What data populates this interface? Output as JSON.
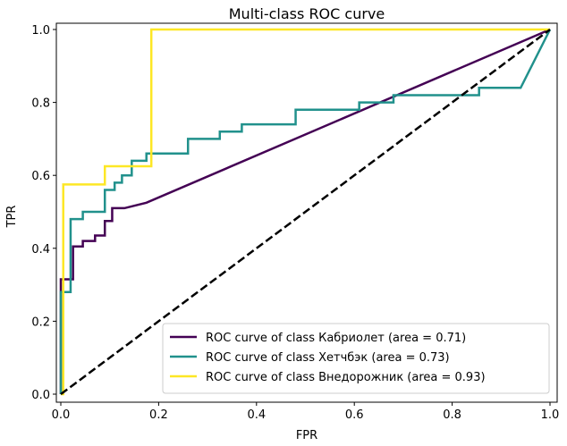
{
  "chart_data": {
    "type": "line",
    "title": "Multi-class ROC curve",
    "xlabel": "FPR",
    "ylabel": "TPR",
    "xlim": [
      0.0,
      1.0
    ],
    "ylim": [
      0.0,
      1.0
    ],
    "xticks": [
      "0.0",
      "0.2",
      "0.4",
      "0.6",
      "0.8",
      "1.0"
    ],
    "yticks": [
      "0.0",
      "0.2",
      "0.4",
      "0.6",
      "0.8",
      "1.0"
    ],
    "grid": false,
    "legend_position": "lower-right",
    "diagonal": {
      "x": [
        0,
        1
      ],
      "y": [
        0,
        1
      ],
      "style": "dashed",
      "color": "#000000"
    },
    "series": [
      {
        "name": "ROC curve of class Кабриолет (area = 0.71)",
        "color": "#440154",
        "x": [
          0.0,
          0.0,
          0.025,
          0.025,
          0.045,
          0.045,
          0.07,
          0.07,
          0.09,
          0.09,
          0.105,
          0.105,
          0.13,
          0.175,
          1.0
        ],
        "y": [
          0.0,
          0.315,
          0.315,
          0.405,
          0.405,
          0.42,
          0.42,
          0.435,
          0.435,
          0.475,
          0.475,
          0.51,
          0.51,
          0.525,
          1.0
        ]
      },
      {
        "name": "ROC curve of class Хетчбэк (area = 0.73)",
        "color": "#21918c",
        "x": [
          0.0,
          0.0,
          0.005,
          0.005,
          0.02,
          0.02,
          0.04,
          0.04,
          0.045,
          0.045,
          0.09,
          0.09,
          0.11,
          0.11,
          0.125,
          0.125,
          0.145,
          0.145,
          0.155,
          0.155,
          0.175,
          0.175,
          0.195,
          0.195,
          0.26,
          0.26,
          0.325,
          0.325,
          0.37,
          0.37,
          0.48,
          0.48,
          0.61,
          0.61,
          0.68,
          0.68,
          0.855,
          0.855,
          0.94,
          1.0
        ],
        "y": [
          0.0,
          0.28,
          0.28,
          0.28,
          0.28,
          0.48,
          0.48,
          0.48,
          0.48,
          0.5,
          0.5,
          0.56,
          0.56,
          0.58,
          0.58,
          0.6,
          0.6,
          0.64,
          0.64,
          0.64,
          0.64,
          0.66,
          0.66,
          0.66,
          0.66,
          0.7,
          0.7,
          0.72,
          0.72,
          0.74,
          0.74,
          0.78,
          0.78,
          0.8,
          0.8,
          0.82,
          0.82,
          0.84,
          0.84,
          1.0
        ]
      },
      {
        "name": "ROC curve of class Внедорожник (area = 0.93)",
        "color": "#fde725",
        "x": [
          0.0,
          0.0,
          0.005,
          0.005,
          0.09,
          0.09,
          0.185,
          0.185,
          1.0
        ],
        "y": [
          0.0,
          0.0,
          0.0,
          0.575,
          0.575,
          0.625,
          0.625,
          1.0,
          1.0
        ]
      }
    ]
  }
}
